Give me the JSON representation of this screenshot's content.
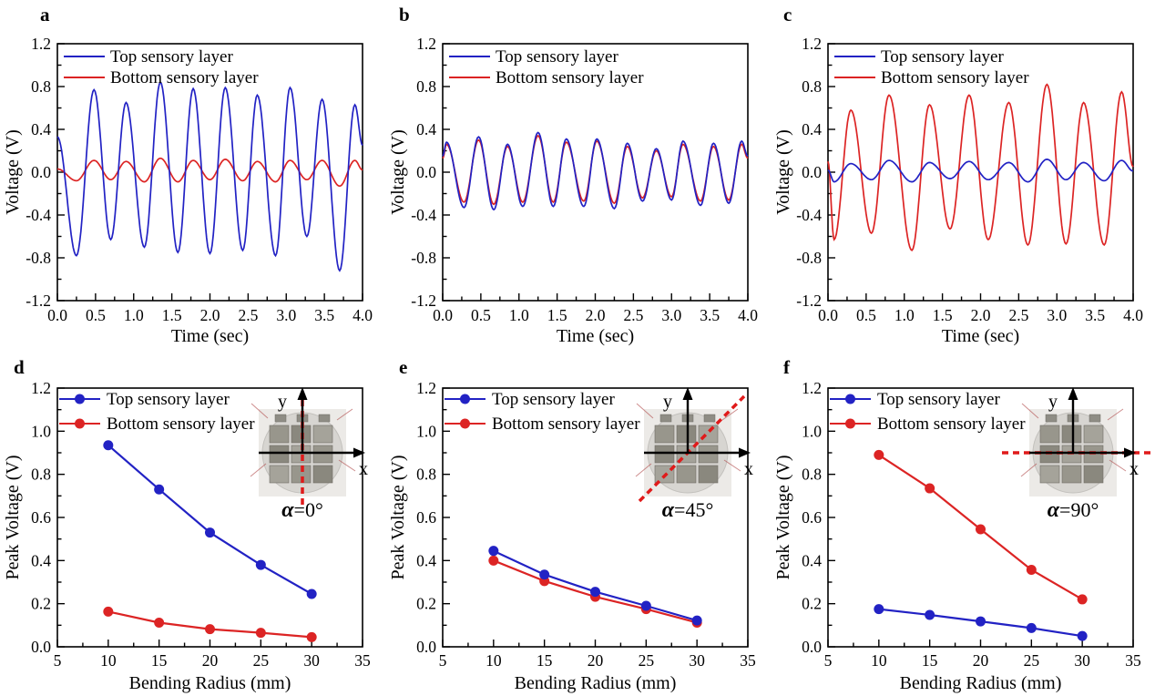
{
  "figure": {
    "background": "#ffffff",
    "colors": {
      "top_layer": "#2222c4",
      "bottom_layer": "#dc2424",
      "axis": "#000000",
      "dash_line": "#e01a1a"
    },
    "legend_labels": {
      "top": "Top sensory layer",
      "bottom": "Bottom sensory layer"
    }
  },
  "chart_data": [
    {
      "panel_label": "a",
      "type": "line",
      "xlabel": "Time (sec)",
      "ylabel": "Voltage (V)",
      "xlim": [
        0,
        4
      ],
      "ylim": [
        -1.2,
        1.2
      ],
      "ticks": {
        "x": {
          "values": [
            0,
            0.5,
            1,
            1.5,
            2,
            2.5,
            3,
            3.5,
            4
          ],
          "labels": [
            "0.0",
            "0.5",
            "1.0",
            "1.5",
            "2.0",
            "2.5",
            "3.0",
            "3.5",
            "4.0"
          ]
        },
        "y": {
          "values": [
            -1.2,
            -0.8,
            -0.4,
            0,
            0.4,
            0.8,
            1.2
          ],
          "labels": [
            "-1.2",
            "-0.8",
            "-0.4",
            "0.0",
            "0.4",
            "0.8",
            "1.2"
          ]
        }
      },
      "series": [
        {
          "name": "Top sensory layer",
          "color": "#2222c4",
          "extrema": [
            [
              0,
              0.33
            ],
            [
              0.25,
              -0.78
            ],
            [
              0.48,
              0.77
            ],
            [
              0.7,
              -0.63
            ],
            [
              0.9,
              0.65
            ],
            [
              1.14,
              -0.7
            ],
            [
              1.35,
              0.84
            ],
            [
              1.58,
              -0.75
            ],
            [
              1.78,
              0.78
            ],
            [
              2.0,
              -0.76
            ],
            [
              2.2,
              0.79
            ],
            [
              2.43,
              -0.73
            ],
            [
              2.62,
              0.72
            ],
            [
              2.86,
              -0.78
            ],
            [
              3.05,
              0.79
            ],
            [
              3.27,
              -0.6
            ],
            [
              3.47,
              0.68
            ],
            [
              3.7,
              -0.92
            ],
            [
              3.9,
              0.63
            ],
            [
              4.0,
              0.25
            ]
          ]
        },
        {
          "name": "Bottom sensory layer",
          "color": "#dc2424",
          "extrema": [
            [
              0,
              0.03
            ],
            [
              0.25,
              -0.08
            ],
            [
              0.48,
              0.11
            ],
            [
              0.7,
              -0.07
            ],
            [
              0.9,
              0.1
            ],
            [
              1.14,
              -0.09
            ],
            [
              1.35,
              0.13
            ],
            [
              1.58,
              -0.09
            ],
            [
              1.78,
              0.11
            ],
            [
              2.0,
              -0.07
            ],
            [
              2.2,
              0.12
            ],
            [
              2.43,
              -0.08
            ],
            [
              2.62,
              0.1
            ],
            [
              2.86,
              -0.09
            ],
            [
              3.05,
              0.11
            ],
            [
              3.27,
              -0.07
            ],
            [
              3.47,
              0.11
            ],
            [
              3.7,
              -0.13
            ],
            [
              3.9,
              0.11
            ],
            [
              4.0,
              0.02
            ]
          ]
        }
      ]
    },
    {
      "panel_label": "b",
      "type": "line",
      "xlabel": "Time (sec)",
      "ylabel": "Voltage (V)",
      "xlim": [
        0,
        4
      ],
      "ylim": [
        -1.2,
        1.2
      ],
      "ticks": {
        "x": {
          "values": [
            0,
            0.5,
            1,
            1.5,
            2,
            2.5,
            3,
            3.5,
            4
          ],
          "labels": [
            "0.0",
            "0.5",
            "1.0",
            "1.5",
            "2.0",
            "2.5",
            "3.0",
            "3.5",
            "4.0"
          ]
        },
        "y": {
          "values": [
            -1.2,
            -0.8,
            -0.4,
            0,
            0.4,
            0.8,
            1.2
          ],
          "labels": [
            "-1.2",
            "-0.8",
            "-0.4",
            "0.0",
            "0.4",
            "0.8",
            "1.2"
          ]
        }
      },
      "series": [
        {
          "name": "Top sensory layer",
          "color": "#2222c4",
          "extrema": [
            [
              0,
              0.15
            ],
            [
              0.05,
              0.28
            ],
            [
              0.28,
              -0.33
            ],
            [
              0.47,
              0.33
            ],
            [
              0.67,
              -0.35
            ],
            [
              0.85,
              0.26
            ],
            [
              1.05,
              -0.32
            ],
            [
              1.25,
              0.37
            ],
            [
              1.45,
              -0.32
            ],
            [
              1.62,
              0.31
            ],
            [
              1.85,
              -0.32
            ],
            [
              2.02,
              0.31
            ],
            [
              2.25,
              -0.34
            ],
            [
              2.42,
              0.27
            ],
            [
              2.62,
              -0.27
            ],
            [
              2.8,
              0.22
            ],
            [
              3.0,
              -0.26
            ],
            [
              3.15,
              0.29
            ],
            [
              3.38,
              -0.31
            ],
            [
              3.55,
              0.27
            ],
            [
              3.75,
              -0.29
            ],
            [
              3.92,
              0.29
            ],
            [
              4.0,
              0.15
            ]
          ]
        },
        {
          "name": "Bottom sensory layer",
          "color": "#dc2424",
          "extrema": [
            [
              0,
              0.13
            ],
            [
              0.05,
              0.26
            ],
            [
              0.28,
              -0.28
            ],
            [
              0.47,
              0.3
            ],
            [
              0.67,
              -0.3
            ],
            [
              0.85,
              0.24
            ],
            [
              1.05,
              -0.28
            ],
            [
              1.25,
              0.34
            ],
            [
              1.45,
              -0.28
            ],
            [
              1.62,
              0.28
            ],
            [
              1.85,
              -0.27
            ],
            [
              2.02,
              0.29
            ],
            [
              2.25,
              -0.29
            ],
            [
              2.42,
              0.24
            ],
            [
              2.62,
              -0.24
            ],
            [
              2.8,
              0.2
            ],
            [
              3.0,
              -0.23
            ],
            [
              3.15,
              0.26
            ],
            [
              3.38,
              -0.27
            ],
            [
              3.55,
              0.24
            ],
            [
              3.75,
              -0.26
            ],
            [
              3.92,
              0.26
            ],
            [
              4.0,
              0.13
            ]
          ]
        }
      ]
    },
    {
      "panel_label": "c",
      "type": "line",
      "xlabel": "Time (sec)",
      "ylabel": "Voltage (V)",
      "xlim": [
        0,
        4
      ],
      "ylim": [
        -1.2,
        1.2
      ],
      "ticks": {
        "x": {
          "values": [
            0,
            0.5,
            1,
            1.5,
            2,
            2.5,
            3,
            3.5,
            4
          ],
          "labels": [
            "0.0",
            "0.5",
            "1.0",
            "1.5",
            "2.0",
            "2.5",
            "3.0",
            "3.5",
            "4.0"
          ]
        },
        "y": {
          "values": [
            -1.2,
            -0.8,
            -0.4,
            0,
            0.4,
            0.8,
            1.2
          ],
          "labels": [
            "-1.2",
            "-0.8",
            "-0.4",
            "0.0",
            "0.4",
            "0.8",
            "1.2"
          ]
        }
      },
      "series": [
        {
          "name": "Top sensory layer",
          "color": "#2222c4",
          "extrema": [
            [
              0,
              0.02
            ],
            [
              0.08,
              -0.09
            ],
            [
              0.3,
              0.08
            ],
            [
              0.57,
              -0.07
            ],
            [
              0.8,
              0.11
            ],
            [
              1.1,
              -0.09
            ],
            [
              1.33,
              0.09
            ],
            [
              1.6,
              -0.06
            ],
            [
              1.85,
              0.1
            ],
            [
              2.1,
              -0.07
            ],
            [
              2.37,
              0.09
            ],
            [
              2.62,
              -0.09
            ],
            [
              2.87,
              0.12
            ],
            [
              3.12,
              -0.07
            ],
            [
              3.35,
              0.09
            ],
            [
              3.62,
              -0.08
            ],
            [
              3.85,
              0.11
            ],
            [
              4.0,
              0.01
            ]
          ]
        },
        {
          "name": "Bottom sensory layer",
          "color": "#dc2424",
          "extrema": [
            [
              0,
              0.1
            ],
            [
              0.08,
              -0.63
            ],
            [
              0.3,
              0.58
            ],
            [
              0.57,
              -0.57
            ],
            [
              0.8,
              0.72
            ],
            [
              1.1,
              -0.73
            ],
            [
              1.33,
              0.63
            ],
            [
              1.6,
              -0.53
            ],
            [
              1.85,
              0.72
            ],
            [
              2.1,
              -0.63
            ],
            [
              2.37,
              0.65
            ],
            [
              2.62,
              -0.68
            ],
            [
              2.87,
              0.82
            ],
            [
              3.12,
              -0.67
            ],
            [
              3.35,
              0.65
            ],
            [
              3.62,
              -0.68
            ],
            [
              3.85,
              0.75
            ],
            [
              4.0,
              0.05
            ]
          ]
        }
      ]
    },
    {
      "panel_label": "d",
      "type": "scatter-line",
      "xlabel": "Bending Radius (mm)",
      "ylabel": "Peak Voltage (V)",
      "xlim": [
        5,
        35
      ],
      "ylim": [
        0,
        1.2
      ],
      "ticks": {
        "x": {
          "values": [
            5,
            10,
            15,
            20,
            25,
            30,
            35
          ],
          "labels": [
            "5",
            "10",
            "15",
            "20",
            "25",
            "30",
            "35"
          ]
        },
        "y": {
          "values": [
            0,
            0.2,
            0.4,
            0.6,
            0.8,
            1,
            1.2
          ],
          "labels": [
            "0.0",
            "0.2",
            "0.4",
            "0.6",
            "0.8",
            "1.0",
            "1.2"
          ]
        }
      },
      "x": [
        10,
        15,
        20,
        25,
        30
      ],
      "series": [
        {
          "name": "Top sensory layer",
          "color": "#2222c4",
          "values": [
            0.935,
            0.73,
            0.53,
            0.38,
            0.245
          ]
        },
        {
          "name": "Bottom sensory layer",
          "color": "#dc2424",
          "values": [
            0.163,
            0.112,
            0.082,
            0.065,
            0.045
          ]
        }
      ],
      "inset": {
        "x_axis_label": "x",
        "y_axis_label": "y",
        "alpha_symbol": "α",
        "angle_text": "=0°",
        "dash": "vertical"
      }
    },
    {
      "panel_label": "e",
      "type": "scatter-line",
      "xlabel": "Bending Radius (mm)",
      "ylabel": "Peak Voltage (V)",
      "xlim": [
        5,
        35
      ],
      "ylim": [
        0,
        1.2
      ],
      "ticks": {
        "x": {
          "values": [
            5,
            10,
            15,
            20,
            25,
            30,
            35
          ],
          "labels": [
            "5",
            "10",
            "15",
            "20",
            "25",
            "30",
            "35"
          ]
        },
        "y": {
          "values": [
            0,
            0.2,
            0.4,
            0.6,
            0.8,
            1,
            1.2
          ],
          "labels": [
            "0.0",
            "0.2",
            "0.4",
            "0.6",
            "0.8",
            "1.0",
            "1.2"
          ]
        }
      },
      "x": [
        10,
        15,
        20,
        25,
        30
      ],
      "series": [
        {
          "name": "Top sensory layer",
          "color": "#2222c4",
          "values": [
            0.445,
            0.335,
            0.255,
            0.19,
            0.122
          ]
        },
        {
          "name": "Bottom sensory layer",
          "color": "#dc2424",
          "values": [
            0.4,
            0.305,
            0.232,
            0.175,
            0.112
          ]
        }
      ],
      "inset": {
        "x_axis_label": "x",
        "y_axis_label": "y",
        "alpha_symbol": "α",
        "angle_text": "=45°",
        "dash": "diagonal"
      }
    },
    {
      "panel_label": "f",
      "type": "scatter-line",
      "xlabel": "Bending Radius (mm)",
      "ylabel": "Peak Voltage (V)",
      "xlim": [
        5,
        35
      ],
      "ylim": [
        0,
        1.2
      ],
      "ticks": {
        "x": {
          "values": [
            5,
            10,
            15,
            20,
            25,
            30,
            35
          ],
          "labels": [
            "5",
            "10",
            "15",
            "20",
            "25",
            "30",
            "35"
          ]
        },
        "y": {
          "values": [
            0,
            0.2,
            0.4,
            0.6,
            0.8,
            1,
            1.2
          ],
          "labels": [
            "0.0",
            "0.2",
            "0.4",
            "0.6",
            "0.8",
            "1.0",
            "1.2"
          ]
        }
      },
      "x": [
        10,
        15,
        20,
        25,
        30
      ],
      "series": [
        {
          "name": "Top sensory layer",
          "color": "#2222c4",
          "values": [
            0.175,
            0.148,
            0.118,
            0.087,
            0.05
          ]
        },
        {
          "name": "Bottom sensory layer",
          "color": "#dc2424",
          "values": [
            0.89,
            0.735,
            0.545,
            0.357,
            0.22
          ]
        }
      ],
      "inset": {
        "x_axis_label": "x",
        "y_axis_label": "y",
        "alpha_symbol": "α",
        "angle_text": "=90°",
        "dash": "horizontal"
      }
    }
  ]
}
